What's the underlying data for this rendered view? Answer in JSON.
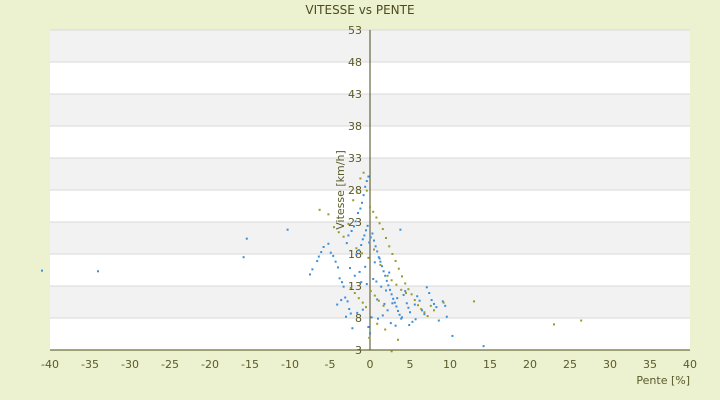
{
  "chart_data": {
    "type": "scatter",
    "title": "VITESSE vs PENTE",
    "xlabel": "Pente [%]",
    "ylabel": "Vitesse [km/h]",
    "xlim": [
      -40,
      40
    ],
    "ylim": [
      3,
      53
    ],
    "x_ticks": [
      -40,
      -35,
      -30,
      -25,
      -20,
      -15,
      -10,
      -5,
      0,
      5,
      10,
      15,
      20,
      25,
      30,
      35,
      40
    ],
    "y_ticks": [
      3,
      8,
      13,
      18,
      23,
      28,
      33,
      38,
      43,
      48,
      53
    ],
    "grid": true,
    "legend": "none",
    "colors": {
      "background": "#ecf1cf",
      "plot_band_white": "#ffffff",
      "plot_band_gray": "#f2f2f2",
      "gridline": "#d9d9d9",
      "axis": "#4b4b1e",
      "text": "#5a5a2a",
      "series_blue": "#3a8fd8",
      "series_olive": "#9a9a2c"
    },
    "series": [
      {
        "color": "#3a8fd8",
        "points": [
          [
            -41,
            15.4
          ],
          [
            -34,
            15.3
          ],
          [
            -15.4,
            20.4
          ],
          [
            -10.3,
            21.8
          ],
          [
            -15.8,
            17.5
          ],
          [
            -7.5,
            14.8
          ],
          [
            -7.2,
            15.6
          ],
          [
            -6.6,
            16.9
          ],
          [
            -6.4,
            17.6
          ],
          [
            -6.1,
            18.3
          ],
          [
            -5.8,
            19.1
          ],
          [
            -5.2,
            19.6
          ],
          [
            -4.9,
            18.2
          ],
          [
            -4.6,
            17.7
          ],
          [
            -4.3,
            16.8
          ],
          [
            -4.0,
            15.9
          ],
          [
            -3.8,
            14.2
          ],
          [
            -3.5,
            13.6
          ],
          [
            -3.3,
            12.9
          ],
          [
            -3.1,
            11.2
          ],
          [
            -2.8,
            10.6
          ],
          [
            -2.6,
            9.4
          ],
          [
            -2.4,
            8.7
          ],
          [
            -2.2,
            6.4
          ],
          [
            -3.6,
            10.8
          ],
          [
            -2.9,
            19.7
          ],
          [
            -2.7,
            20.9
          ],
          [
            -2.3,
            21.6
          ],
          [
            -2.0,
            22.3
          ],
          [
            -1.8,
            23.1
          ],
          [
            -1.5,
            24.4
          ],
          [
            -1.2,
            25.1
          ],
          [
            -1.0,
            26.0
          ],
          [
            -0.8,
            27.2
          ],
          [
            -0.6,
            28.5
          ],
          [
            -0.4,
            29.4
          ],
          [
            -0.2,
            30.1
          ],
          [
            -1.7,
            17.9
          ],
          [
            -1.4,
            18.6
          ],
          [
            -1.1,
            19.4
          ],
          [
            -0.9,
            20.3
          ],
          [
            -0.7,
            20.9
          ],
          [
            -0.5,
            21.7
          ],
          [
            -0.3,
            22.4
          ],
          [
            -0.1,
            19.8
          ],
          [
            0.1,
            20.6
          ],
          [
            0.3,
            21.2
          ],
          [
            0.5,
            20.1
          ],
          [
            0.7,
            19.2
          ],
          [
            0.9,
            18.4
          ],
          [
            1.1,
            17.5
          ],
          [
            1.3,
            16.8
          ],
          [
            1.5,
            16.1
          ],
          [
            1.7,
            15.3
          ],
          [
            1.9,
            14.6
          ],
          [
            2.1,
            13.8
          ],
          [
            2.3,
            13.1
          ],
          [
            2.5,
            12.4
          ],
          [
            2.7,
            11.7
          ],
          [
            2.9,
            11.0
          ],
          [
            3.1,
            10.4
          ],
          [
            3.3,
            9.8
          ],
          [
            3.5,
            9.1
          ],
          [
            3.7,
            8.5
          ],
          [
            3.9,
            7.9
          ],
          [
            4.2,
            11.6
          ],
          [
            4.4,
            12.2
          ],
          [
            4.6,
            10.3
          ],
          [
            4.8,
            9.6
          ],
          [
            5.0,
            8.9
          ],
          [
            5.3,
            7.4
          ],
          [
            5.6,
            10.1
          ],
          [
            5.9,
            11.4
          ],
          [
            6.2,
            10.7
          ],
          [
            6.5,
            9.2
          ],
          [
            6.8,
            8.6
          ],
          [
            7.1,
            12.8
          ],
          [
            7.4,
            11.9
          ],
          [
            7.7,
            10.8
          ],
          [
            8.0,
            10.2
          ],
          [
            8.3,
            9.7
          ],
          [
            8.6,
            7.6
          ],
          [
            9.1,
            10.6
          ],
          [
            9.4,
            9.9
          ],
          [
            9.6,
            8.2
          ],
          [
            10.3,
            5.2
          ],
          [
            14.2,
            3.6
          ],
          [
            -1.6,
            8.8
          ],
          [
            -0.9,
            9.3
          ],
          [
            0.2,
            8.1
          ],
          [
            1.0,
            7.9
          ],
          [
            1.6,
            8.4
          ],
          [
            2.2,
            9.2
          ],
          [
            2.8,
            10.3
          ],
          [
            3.4,
            11.1
          ],
          [
            -0.4,
            13.3
          ],
          [
            0.4,
            14.1
          ],
          [
            0.8,
            13.7
          ],
          [
            1.4,
            12.9
          ],
          [
            2.0,
            12.3
          ],
          [
            -1.9,
            14.6
          ],
          [
            -1.3,
            15.2
          ],
          [
            -0.6,
            16.0
          ],
          [
            0.6,
            16.7
          ],
          [
            1.2,
            17.3
          ],
          [
            3.8,
            21.8
          ],
          [
            -4.1,
            10.1
          ],
          [
            -3.0,
            8.2
          ],
          [
            -0.2,
            6.6
          ],
          [
            0.0,
            5.6
          ],
          [
            2.6,
            7.2
          ],
          [
            3.2,
            6.8
          ],
          [
            4.0,
            8.1
          ],
          [
            4.9,
            6.9
          ],
          [
            5.7,
            7.8
          ],
          [
            -2.5,
            15.8
          ],
          [
            -1.1,
            13.6
          ],
          [
            0.9,
            10.9
          ],
          [
            1.8,
            10.2
          ],
          [
            2.4,
            15.1
          ]
        ]
      },
      {
        "color": "#9a9a2c",
        "points": [
          [
            -6.3,
            24.9
          ],
          [
            -5.2,
            24.2
          ],
          [
            -4.5,
            22.2
          ],
          [
            -3.9,
            21.4
          ],
          [
            -3.3,
            20.7
          ],
          [
            -2.7,
            22.7
          ],
          [
            -2.1,
            26.4
          ],
          [
            -1.6,
            27.6
          ],
          [
            -1.2,
            29.8
          ],
          [
            -0.8,
            30.7
          ],
          [
            -0.4,
            27.9
          ],
          [
            0.0,
            25.3
          ],
          [
            0.4,
            24.6
          ],
          [
            0.8,
            23.7
          ],
          [
            1.2,
            22.8
          ],
          [
            1.6,
            21.9
          ],
          [
            2.0,
            20.5
          ],
          [
            2.4,
            19.2
          ],
          [
            2.8,
            18.0
          ],
          [
            3.2,
            16.9
          ],
          [
            3.6,
            15.7
          ],
          [
            4.0,
            14.5
          ],
          [
            4.4,
            13.4
          ],
          [
            4.8,
            12.5
          ],
          [
            5.2,
            11.7
          ],
          [
            5.6,
            10.8
          ],
          [
            6.0,
            10.0
          ],
          [
            6.4,
            9.4
          ],
          [
            6.8,
            8.9
          ],
          [
            7.2,
            8.3
          ],
          [
            7.6,
            9.9
          ],
          [
            8.0,
            9.2
          ],
          [
            9.2,
            10.4
          ],
          [
            13.0,
            10.6
          ],
          [
            23.0,
            7.0
          ],
          [
            26.4,
            7.6
          ],
          [
            -2.4,
            12.7
          ],
          [
            -1.9,
            11.9
          ],
          [
            -1.4,
            11.1
          ],
          [
            -0.9,
            10.4
          ],
          [
            -0.5,
            9.7
          ],
          [
            0.1,
            12.2
          ],
          [
            0.6,
            11.5
          ],
          [
            1.1,
            10.7
          ],
          [
            1.7,
            9.9
          ],
          [
            2.2,
            14.6
          ],
          [
            2.7,
            13.9
          ],
          [
            3.3,
            13.2
          ],
          [
            3.9,
            12.4
          ],
          [
            4.5,
            11.9
          ],
          [
            -1.7,
            18.9
          ],
          [
            -1.0,
            18.1
          ],
          [
            -0.2,
            17.4
          ],
          [
            0.5,
            18.7
          ],
          [
            1.3,
            16.3
          ],
          [
            -0.1,
            4.9
          ],
          [
            2.7,
            2.8
          ],
          [
            3.5,
            4.6
          ],
          [
            1.9,
            6.2
          ],
          [
            0.9,
            7.1
          ]
        ]
      }
    ]
  }
}
